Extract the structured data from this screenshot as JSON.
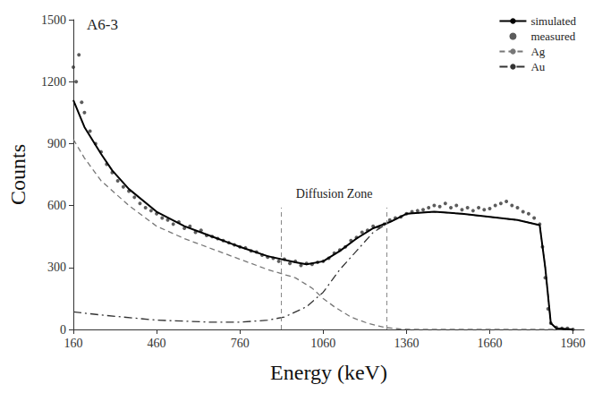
{
  "chart_data": {
    "type": "line",
    "x_label": "Energy (keV)",
    "y_label": "Counts",
    "xlim": [
      160,
      2000
    ],
    "xticks": [
      160,
      460,
      760,
      1060,
      1360,
      1660,
      1960
    ],
    "ylim": [
      0,
      1500
    ],
    "yticks": [
      0,
      300,
      600,
      900,
      1200,
      1500
    ],
    "grid": false,
    "legend": "upper right",
    "annotations": [
      {
        "text": "A6-3"
      },
      {
        "text": "Diffusion Zone",
        "x": [
          910,
          1290
        ],
        "y": [
          0,
          590
        ]
      }
    ],
    "series": [
      {
        "name": "simulated",
        "type": "line",
        "color": "#000000",
        "line_style": "solid",
        "x": [
          160,
          200,
          260,
          300,
          360,
          460,
          560,
          660,
          760,
          860,
          960,
          1000,
          1060,
          1120,
          1180,
          1240,
          1300,
          1360,
          1460,
          1560,
          1660,
          1760,
          1840,
          1860,
          1880,
          1900,
          1960
        ],
        "values": [
          1110,
          980,
          850,
          770,
          680,
          570,
          500,
          450,
          400,
          355,
          325,
          315,
          330,
          380,
          440,
          490,
          520,
          560,
          570,
          560,
          545,
          530,
          505,
          300,
          30,
          5,
          0
        ]
      },
      {
        "name": "measured",
        "type": "scatter",
        "color": "#333333",
        "marker": "circle",
        "x": [
          160,
          170,
          180,
          190,
          200,
          220,
          240,
          260,
          280,
          300,
          320,
          340,
          360,
          380,
          400,
          420,
          440,
          460,
          480,
          500,
          520,
          540,
          560,
          580,
          600,
          620,
          640,
          660,
          680,
          700,
          720,
          740,
          760,
          780,
          800,
          820,
          840,
          860,
          880,
          900,
          920,
          940,
          960,
          980,
          1000,
          1020,
          1040,
          1060,
          1080,
          1100,
          1120,
          1140,
          1160,
          1180,
          1200,
          1220,
          1240,
          1260,
          1280,
          1300,
          1320,
          1340,
          1360,
          1380,
          1400,
          1420,
          1440,
          1460,
          1480,
          1500,
          1520,
          1540,
          1560,
          1580,
          1600,
          1620,
          1640,
          1660,
          1680,
          1700,
          1720,
          1740,
          1760,
          1780,
          1800,
          1820,
          1840,
          1850,
          1860,
          1870,
          1880,
          1900,
          1920,
          1940,
          1960
        ],
        "values": [
          1270,
          1200,
          1330,
          1100,
          1050,
          960,
          900,
          860,
          800,
          760,
          720,
          690,
          670,
          640,
          610,
          590,
          575,
          560,
          540,
          530,
          510,
          520,
          490,
          500,
          470,
          480,
          455,
          450,
          440,
          430,
          420,
          410,
          400,
          395,
          380,
          375,
          360,
          350,
          345,
          330,
          340,
          320,
          330,
          310,
          320,
          315,
          325,
          330,
          345,
          370,
          385,
          400,
          430,
          445,
          470,
          480,
          500,
          495,
          510,
          530,
          540,
          545,
          560,
          570,
          575,
          580,
          590,
          600,
          595,
          610,
          590,
          600,
          580,
          590,
          575,
          590,
          580,
          585,
          600,
          610,
          620,
          600,
          590,
          570,
          560,
          540,
          510,
          400,
          250,
          100,
          30,
          10,
          5,
          5,
          0
        ]
      },
      {
        "name": "Ag",
        "type": "line",
        "color": "#777777",
        "line_style": "dashed",
        "x": [
          160,
          200,
          260,
          360,
          460,
          560,
          660,
          760,
          860,
          960,
          1020,
          1060,
          1100,
          1160,
          1220,
          1280,
          1340,
          1400,
          1960
        ],
        "values": [
          920,
          830,
          720,
          600,
          500,
          440,
          390,
          340,
          290,
          250,
          200,
          150,
          110,
          60,
          30,
          10,
          2,
          0,
          0
        ]
      },
      {
        "name": "Au",
        "type": "line",
        "color": "#333333",
        "line_style": "dashdot",
        "x": [
          160,
          260,
          460,
          660,
          760,
          860,
          920,
          1000,
          1060,
          1120,
          1180,
          1240,
          1300,
          1360,
          1460,
          1560,
          1660,
          1760,
          1840,
          1860,
          1880,
          1900,
          1960
        ],
        "values": [
          85,
          70,
          45,
          35,
          35,
          45,
          60,
          110,
          180,
          290,
          380,
          470,
          520,
          560,
          570,
          560,
          545,
          530,
          505,
          300,
          30,
          5,
          0
        ]
      }
    ]
  }
}
